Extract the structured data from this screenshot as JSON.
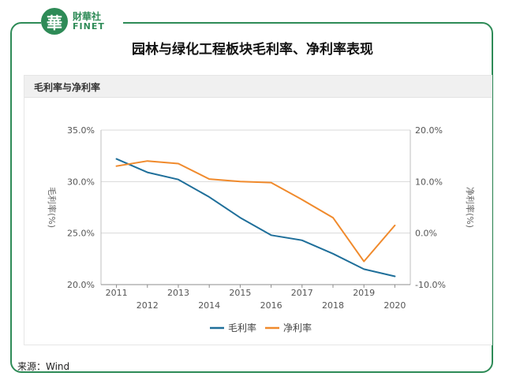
{
  "brand": {
    "logo_glyph": "華",
    "name_cn": "財華社",
    "name_en": "FINET",
    "color": "#2e8b57"
  },
  "main_title": "园林与绿化工程板块毛利率、净利率表现",
  "panel_title": "毛利率与净利率",
  "source": "来源：Wind",
  "chart_data": {
    "type": "line",
    "title": "毛利率与净利率",
    "x": [
      "2011",
      "2012",
      "2013",
      "2014",
      "2015",
      "2016",
      "2017",
      "2018",
      "2019",
      "2020"
    ],
    "series": [
      {
        "name": "毛利率",
        "axis": "left",
        "color": "#1f6f9a",
        "values": [
          32.2,
          30.9,
          30.2,
          28.5,
          26.5,
          24.8,
          24.3,
          23.0,
          21.5,
          20.8
        ]
      },
      {
        "name": "净利率",
        "axis": "right",
        "color": "#f08a2c",
        "values": [
          13.0,
          14.0,
          13.5,
          10.5,
          10.0,
          9.8,
          6.5,
          3.0,
          -5.5,
          1.5
        ]
      }
    ],
    "y_left": {
      "label": "毛利率(%)",
      "min": 20,
      "max": 35,
      "ticks": [
        "20.0%",
        "25.0%",
        "30.0%",
        "35.0%"
      ],
      "tick_values": [
        20,
        25,
        30,
        35
      ]
    },
    "y_right": {
      "label": "净利率(%)",
      "min": -10,
      "max": 20,
      "ticks": [
        "-10.0%",
        "0.0%",
        "10.0%",
        "20.0%"
      ],
      "tick_values": [
        -10,
        0,
        10,
        20
      ]
    },
    "grid": true,
    "legend": "bottom"
  }
}
